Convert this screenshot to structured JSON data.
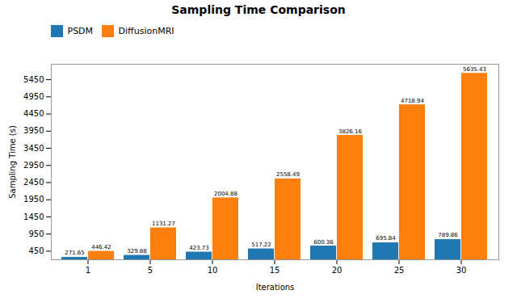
{
  "chart_data": {
    "type": "bar",
    "title": "Sampling Time Comparison",
    "xlabel": "Iterations",
    "ylabel": "Sampling Time (s)",
    "categories": [
      "1",
      "5",
      "10",
      "15",
      "20",
      "25",
      "30"
    ],
    "series": [
      {
        "name": "PSDM",
        "color": "#1f77b4",
        "values": [
          271.65,
          329.88,
          423.73,
          517.22,
          600.36,
          695.84,
          789.86
        ]
      },
      {
        "name": "DiffusionMRI",
        "color": "#ff7f0e",
        "values": [
          446.42,
          1131.27,
          2004.88,
          2558.49,
          3826.16,
          4718.94,
          5635.43
        ]
      }
    ],
    "ylim": [
      200,
      5900
    ],
    "yticks": [
      450,
      950,
      1450,
      1950,
      2450,
      2950,
      3450,
      3950,
      4450,
      4950,
      5450
    ],
    "data_labels": true,
    "legend": "upper left",
    "grid": false
  }
}
